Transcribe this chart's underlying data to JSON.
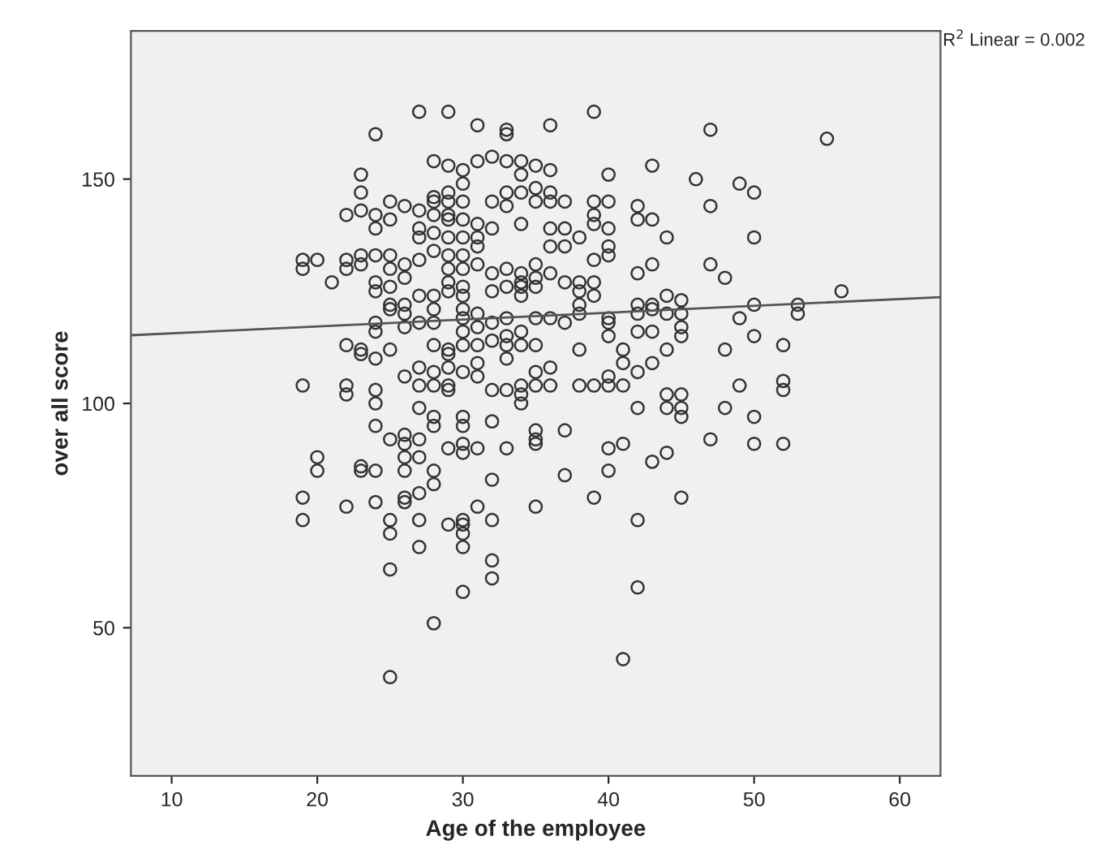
{
  "chart_data": {
    "type": "scatter",
    "xlabel": "Age of the employee",
    "ylabel": "over all score",
    "annotations": [
      "R$^{2}$ Linear = 0.002"
    ],
    "xlim": [
      7.2,
      62.8
    ],
    "xticks": [
      10,
      20,
      30,
      40,
      50,
      60
    ],
    "ylim": [
      17,
      183
    ],
    "yticks": [
      50,
      100,
      150
    ],
    "grid": false,
    "series": [
      {
        "marker": "circle",
        "color": "#333333",
        "x": [
          19,
          19,
          19,
          19,
          19,
          20,
          20,
          20,
          21,
          22,
          22,
          22,
          22,
          22,
          22,
          22,
          23,
          23,
          23,
          23,
          23,
          23,
          23,
          23,
          23,
          24,
          24,
          24,
          24,
          24,
          24,
          24,
          24,
          24,
          24,
          24,
          24,
          24,
          24,
          25,
          25,
          25,
          25,
          25,
          25,
          25,
          25,
          25,
          25,
          25,
          25,
          25,
          26,
          26,
          26,
          26,
          26,
          26,
          26,
          26,
          26,
          26,
          26,
          26,
          26,
          27,
          27,
          27,
          27,
          27,
          27,
          27,
          27,
          27,
          27,
          27,
          27,
          27,
          27,
          27,
          28,
          28,
          28,
          28,
          28,
          28,
          28,
          28,
          28,
          28,
          28,
          28,
          28,
          28,
          28,
          28,
          28,
          29,
          29,
          29,
          29,
          29,
          29,
          29,
          29,
          29,
          29,
          29,
          29,
          29,
          29,
          29,
          29,
          29,
          29,
          30,
          30,
          30,
          30,
          30,
          30,
          30,
          30,
          30,
          30,
          30,
          30,
          30,
          30,
          30,
          30,
          30,
          30,
          30,
          30,
          30,
          30,
          30,
          31,
          31,
          31,
          31,
          31,
          31,
          31,
          31,
          31,
          31,
          31,
          31,
          31,
          32,
          32,
          32,
          32,
          32,
          32,
          32,
          32,
          32,
          32,
          32,
          32,
          32,
          33,
          33,
          33,
          33,
          33,
          33,
          33,
          33,
          33,
          33,
          33,
          33,
          33,
          34,
          34,
          34,
          34,
          34,
          34,
          34,
          34,
          34,
          34,
          34,
          34,
          34,
          35,
          35,
          35,
          35,
          35,
          35,
          35,
          35,
          35,
          35,
          35,
          35,
          35,
          35,
          36,
          36,
          36,
          36,
          36,
          36,
          36,
          36,
          36,
          36,
          37,
          37,
          37,
          37,
          37,
          37,
          37,
          38,
          38,
          38,
          38,
          38,
          38,
          38,
          39,
          39,
          39,
          39,
          39,
          39,
          39,
          39,
          39,
          40,
          40,
          40,
          40,
          40,
          40,
          40,
          40,
          40,
          40,
          40,
          40,
          41,
          41,
          41,
          41,
          41,
          42,
          42,
          42,
          42,
          42,
          42,
          42,
          42,
          42,
          42,
          43,
          43,
          43,
          43,
          43,
          43,
          43,
          43,
          44,
          44,
          44,
          44,
          44,
          44,
          44,
          45,
          45,
          45,
          45,
          45,
          45,
          45,
          45,
          46,
          47,
          47,
          47,
          47,
          48,
          48,
          48,
          49,
          49,
          49,
          50,
          50,
          50,
          50,
          50,
          50,
          52,
          52,
          52,
          52,
          53,
          53,
          55,
          56
        ],
        "values": [
          132,
          130,
          104,
          79,
          74,
          132,
          88,
          85,
          127,
          142,
          132,
          130,
          113,
          104,
          102,
          77,
          151,
          147,
          143,
          133,
          131,
          112,
          111,
          86,
          85,
          160,
          142,
          139,
          133,
          127,
          125,
          118,
          116,
          110,
          103,
          100,
          95,
          85,
          78,
          145,
          141,
          133,
          130,
          126,
          122,
          121,
          112,
          92,
          74,
          71,
          63,
          39,
          144,
          131,
          128,
          122,
          120,
          117,
          106,
          93,
          91,
          88,
          85,
          79,
          78,
          165,
          143,
          139,
          137,
          132,
          124,
          118,
          108,
          104,
          99,
          92,
          88,
          80,
          74,
          68,
          154,
          146,
          145,
          142,
          138,
          134,
          124,
          121,
          118,
          113,
          107,
          104,
          97,
          95,
          85,
          82,
          51,
          165,
          153,
          147,
          145,
          142,
          141,
          137,
          133,
          130,
          127,
          125,
          112,
          111,
          108,
          104,
          103,
          90,
          73,
          152,
          149,
          145,
          141,
          137,
          133,
          130,
          126,
          124,
          121,
          119,
          116,
          113,
          107,
          97,
          95,
          91,
          89,
          74,
          73,
          71,
          68,
          58,
          162,
          154,
          140,
          137,
          135,
          131,
          120,
          117,
          113,
          109,
          106,
          90,
          77,
          155,
          145,
          139,
          129,
          125,
          118,
          114,
          103,
          96,
          83,
          74,
          65,
          61,
          161,
          160,
          154,
          147,
          144,
          130,
          126,
          119,
          115,
          113,
          110,
          103,
          90,
          154,
          151,
          147,
          140,
          129,
          127,
          126,
          124,
          116,
          113,
          104,
          102,
          100,
          153,
          148,
          145,
          131,
          128,
          126,
          119,
          113,
          107,
          104,
          94,
          92,
          91,
          77,
          162,
          152,
          147,
          145,
          139,
          135,
          129,
          119,
          108,
          104,
          145,
          139,
          135,
          127,
          118,
          94,
          84,
          137,
          127,
          125,
          122,
          120,
          112,
          104,
          165,
          145,
          142,
          140,
          132,
          127,
          124,
          104,
          79,
          151,
          145,
          139,
          135,
          133,
          119,
          118,
          115,
          106,
          104,
          90,
          85,
          112,
          109,
          104,
          91,
          43,
          144,
          141,
          129,
          122,
          120,
          116,
          107,
          99,
          74,
          59,
          153,
          141,
          131,
          122,
          121,
          116,
          109,
          87,
          137,
          124,
          120,
          112,
          102,
          99,
          89,
          123,
          120,
          117,
          115,
          102,
          99,
          97,
          79,
          150,
          161,
          144,
          131,
          92,
          128,
          112,
          99,
          149,
          119,
          104,
          147,
          137,
          122,
          115,
          97,
          91,
          113,
          105,
          103,
          91,
          122,
          120,
          159,
          125
        ]
      },
      {
        "type": "line",
        "marker": "none",
        "color": "#555555",
        "x": [
          7.2,
          62.8
        ],
        "values": [
          115.2,
          123.7
        ]
      }
    ]
  }
}
